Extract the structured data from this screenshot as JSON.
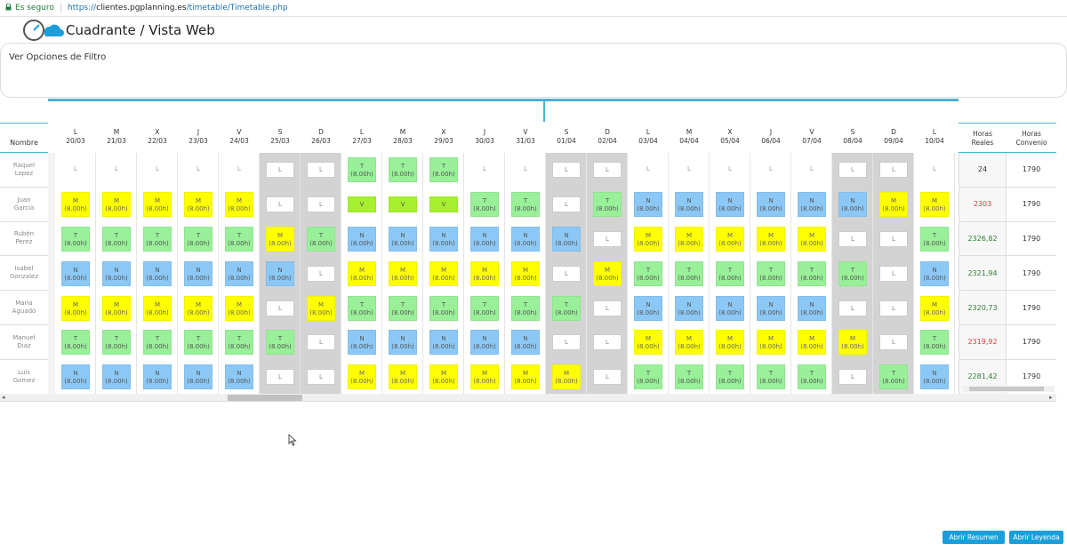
{
  "browser": {
    "secure_label": "Es seguro",
    "url_protocol": "https://",
    "url_domain": "clientes.pgplanning.es",
    "url_path": "/timetable/Timetable.php"
  },
  "header": {
    "title": "Cuadrante / Vista Web"
  },
  "filter": {
    "label": "Ver Opciones de Filtro"
  },
  "table": {
    "name_header": "Nombre",
    "hours_real_header": [
      "Horas",
      "Reales"
    ],
    "hours_convenio_header": [
      "Horas",
      "Convenio"
    ],
    "days": [
      {
        "dow": "L",
        "date": "20/03"
      },
      {
        "dow": "M",
        "date": "21/03"
      },
      {
        "dow": "X",
        "date": "22/03"
      },
      {
        "dow": "J",
        "date": "23/03"
      },
      {
        "dow": "V",
        "date": "24/03"
      },
      {
        "dow": "S",
        "date": "25/03"
      },
      {
        "dow": "D",
        "date": "26/03"
      },
      {
        "dow": "L",
        "date": "27/03"
      },
      {
        "dow": "M",
        "date": "28/03"
      },
      {
        "dow": "X",
        "date": "29/03"
      },
      {
        "dow": "J",
        "date": "30/03"
      },
      {
        "dow": "V",
        "date": "31/03"
      },
      {
        "dow": "S",
        "date": "01/04"
      },
      {
        "dow": "D",
        "date": "02/04"
      },
      {
        "dow": "L",
        "date": "03/04"
      },
      {
        "dow": "M",
        "date": "04/04"
      },
      {
        "dow": "X",
        "date": "05/04"
      },
      {
        "dow": "J",
        "date": "06/04"
      },
      {
        "dow": "V",
        "date": "07/04"
      },
      {
        "dow": "S",
        "date": "08/04"
      },
      {
        "dow": "D",
        "date": "09/04"
      },
      {
        "dow": "L",
        "date": "10/04"
      }
    ],
    "weekend_columns": [
      5,
      6,
      12,
      13,
      19,
      20
    ],
    "rows": [
      {
        "name": [
          "Raquel",
          "Lopez"
        ],
        "real": "24",
        "real_color": "black",
        "convenio": "1790",
        "shifts": [
          "L",
          "L",
          "L",
          "L",
          "L",
          "L",
          "L",
          "T",
          "T",
          "T",
          "L",
          "L",
          "L",
          "L",
          "L",
          "L",
          "L",
          "L",
          "L",
          "L",
          "L",
          "L"
        ]
      },
      {
        "name": [
          "Juan",
          "Garcia"
        ],
        "real": "2303",
        "real_color": "red",
        "convenio": "1790",
        "shifts": [
          "M",
          "M",
          "M",
          "M",
          "M",
          "L",
          "L",
          "V",
          "V",
          "V",
          "T",
          "T",
          "L",
          "T",
          "N",
          "N",
          "N",
          "N",
          "N",
          "N",
          "M",
          "M"
        ]
      },
      {
        "name": [
          "Rubén",
          "Perez"
        ],
        "real": "2326,82",
        "real_color": "green",
        "convenio": "1790",
        "shifts": [
          "T",
          "T",
          "T",
          "T",
          "T",
          "M",
          "T",
          "N",
          "N",
          "N",
          "N",
          "N",
          "N",
          "L",
          "M",
          "M",
          "M",
          "M",
          "M",
          "L",
          "L",
          "T"
        ]
      },
      {
        "name": [
          "Isabel",
          "Gonzalez"
        ],
        "real": "2321,94",
        "real_color": "green",
        "convenio": "1790",
        "shifts": [
          "N",
          "N",
          "N",
          "N",
          "N",
          "N",
          "L",
          "M",
          "M",
          "M",
          "M",
          "M",
          "L",
          "M",
          "T",
          "T",
          "T",
          "T",
          "T",
          "T",
          "L",
          "N"
        ]
      },
      {
        "name": [
          "Maria",
          "Aguado"
        ],
        "real": "2320,73",
        "real_color": "green",
        "convenio": "1790",
        "shifts": [
          "M",
          "M",
          "M",
          "M",
          "M",
          "L",
          "M",
          "T",
          "T",
          "T",
          "T",
          "T",
          "T",
          "L",
          "N",
          "N",
          "N",
          "N",
          "N",
          "L",
          "L",
          "M"
        ]
      },
      {
        "name": [
          "Manuel",
          "Diaz"
        ],
        "real": "2319,92",
        "real_color": "red",
        "convenio": "1790",
        "shifts": [
          "T",
          "T",
          "T",
          "T",
          "T",
          "T",
          "L",
          "N",
          "N",
          "N",
          "N",
          "N",
          "L",
          "L",
          "M",
          "M",
          "M",
          "M",
          "M",
          "M",
          "L",
          "T"
        ]
      },
      {
        "name": [
          "Luis",
          "Gomez"
        ],
        "real": "2281,42",
        "real_color": "green",
        "convenio": "1790",
        "shifts": [
          "N",
          "N",
          "N",
          "N",
          "N",
          "L",
          "L",
          "M",
          "M",
          "M",
          "M",
          "M",
          "M",
          "L",
          "T",
          "T",
          "T",
          "T",
          "T",
          "L",
          "T",
          "N"
        ]
      }
    ],
    "hours_label": "(8.00h)"
  },
  "buttons": {
    "summary": "Abrir Resumen",
    "legend": "Abrir Leyenda"
  },
  "colors": {
    "M": "#ffff00",
    "T": "#99f099",
    "N": "#8cc8f5",
    "V": "#a6f02f",
    "accent": "#4bb0d8"
  }
}
